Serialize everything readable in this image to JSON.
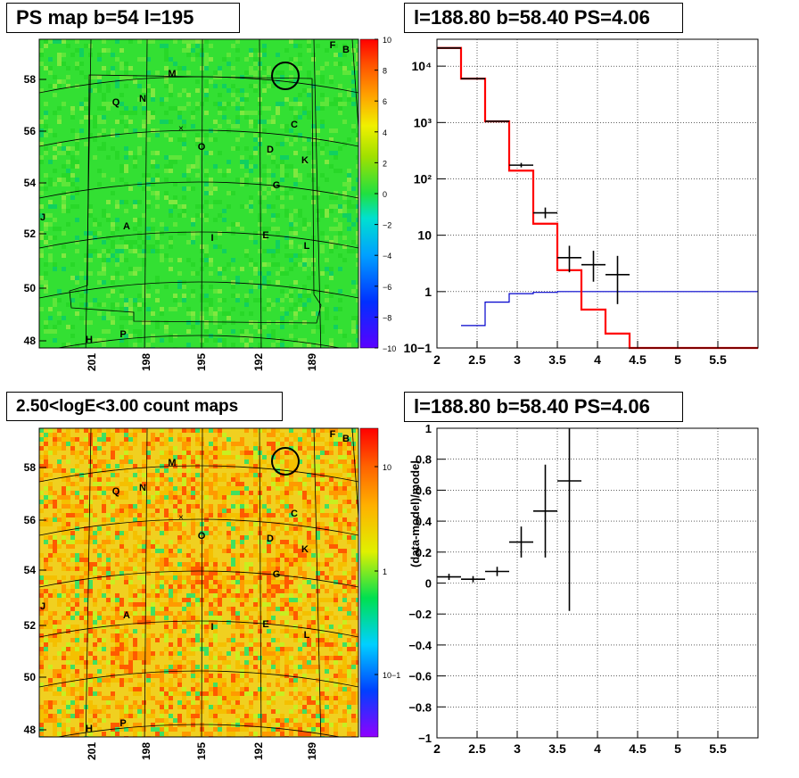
{
  "panels": {
    "top_left_title": "PS map b=54 l=195",
    "top_right_title": "l=188.80 b=58.40 PS=4.06",
    "bottom_left_title": "2.50<logE<3.00 count maps",
    "bottom_right_title": "l=188.80 b=58.40 PS=4.06"
  },
  "colors": {
    "map_green": "#33e033",
    "map_yellow": "#f0d020",
    "data_black": "#000000",
    "model_red": "#ff0000",
    "background_blue": "#0000cc"
  },
  "chart_data": [
    {
      "type": "heatmap",
      "title": "PS map b=54 l=195",
      "y_ticks": [
        "48",
        "50",
        "52",
        "54",
        "56",
        "58"
      ],
      "x_ticks": [
        "201",
        "198",
        "195",
        "192",
        "189"
      ],
      "colorbar_ticks": [
        "10",
        "8",
        "6",
        "4",
        "2",
        "0",
        "−2",
        "−4",
        "−6",
        "−8",
        "−10"
      ],
      "zlim": [
        -10,
        10
      ],
      "source_labels": [
        "F",
        "B",
        "M",
        "Q",
        "N",
        "C",
        "O",
        "D",
        "K",
        "G",
        "J",
        "A",
        "I",
        "E",
        "L",
        "H",
        "P"
      ],
      "marker": {
        "l": 188.8,
        "b": 58.4
      }
    },
    {
      "type": "line",
      "title": "l=188.80 b=58.40 PS=4.06",
      "yscale": "log",
      "xlim": [
        2,
        6
      ],
      "ylim": [
        0.1,
        30000
      ],
      "x_ticks": [
        "2",
        "2.5",
        "3",
        "3.5",
        "4",
        "4.5",
        "5",
        "5.5"
      ],
      "y_ticks": [
        "10−1",
        "1",
        "10",
        "10²",
        "10³",
        "10⁴"
      ],
      "series": [
        {
          "type": "step",
          "edges": [
            2.0,
            2.3,
            2.6,
            2.9,
            3.2,
            3.5,
            3.8,
            4.1,
            4.4,
            6.0
          ],
          "values": [
            21000,
            6000,
            1050,
            140,
            16,
            2.4,
            0.48,
            0.18,
            0.1
          ]
        },
        {
          "type": "step",
          "edges": [
            2.3,
            2.6,
            2.9,
            3.2,
            3.5,
            6.0
          ],
          "values": [
            0.25,
            0.65,
            0.92,
            0.97,
            1.0
          ]
        },
        {
          "type": "errorbar",
          "x": [
            2.15,
            2.45,
            2.75,
            3.05,
            3.35,
            3.65,
            3.95,
            4.25
          ],
          "y": [
            21000,
            6000,
            1050,
            175,
            25,
            4,
            3,
            2
          ],
          "xerr": 0.15,
          "ylow": [
            20800,
            5920,
            1030,
            160,
            20,
            2.2,
            1.5,
            0.6
          ],
          "yhigh": [
            21200,
            6080,
            1070,
            192,
            31,
            6.5,
            5.3,
            4.3
          ]
        }
      ]
    },
    {
      "type": "heatmap",
      "title": "2.50<logE<3.00 count maps",
      "y_ticks": [
        "48",
        "50",
        "52",
        "54",
        "56",
        "58"
      ],
      "x_ticks": [
        "201",
        "198",
        "195",
        "192",
        "189"
      ],
      "colorbar_ticks": [
        "10",
        "1",
        "10−1"
      ],
      "zscale": "log",
      "source_labels": [
        "F",
        "B",
        "M",
        "Q",
        "N",
        "C",
        "O",
        "D",
        "K",
        "G",
        "J",
        "A",
        "I",
        "E",
        "L",
        "H",
        "P"
      ]
    },
    {
      "type": "scatter",
      "title": "l=188.80 b=58.40 PS=4.06",
      "ylabel": "(data-model)/model",
      "xlim": [
        2,
        6
      ],
      "ylim": [
        -1,
        1
      ],
      "x_ticks": [
        "2",
        "2.5",
        "3",
        "3.5",
        "4",
        "4.5",
        "5",
        "5.5"
      ],
      "y_ticks": [
        "−1",
        "−0.8",
        "−0.6",
        "−0.4",
        "−0.2",
        "0",
        "0.2",
        "0.4",
        "0.6",
        "0.8",
        "1"
      ],
      "x": [
        2.15,
        2.45,
        2.75,
        3.05,
        3.35,
        3.65
      ],
      "y": [
        0.04,
        0.025,
        0.075,
        0.265,
        0.465,
        0.66
      ],
      "xerr": 0.15,
      "yerr_low": [
        0.02,
        0.02,
        0.03,
        0.1,
        0.3,
        0.84
      ],
      "yerr_high": [
        0.02,
        0.02,
        0.03,
        0.1,
        0.3,
        0.36
      ]
    }
  ]
}
